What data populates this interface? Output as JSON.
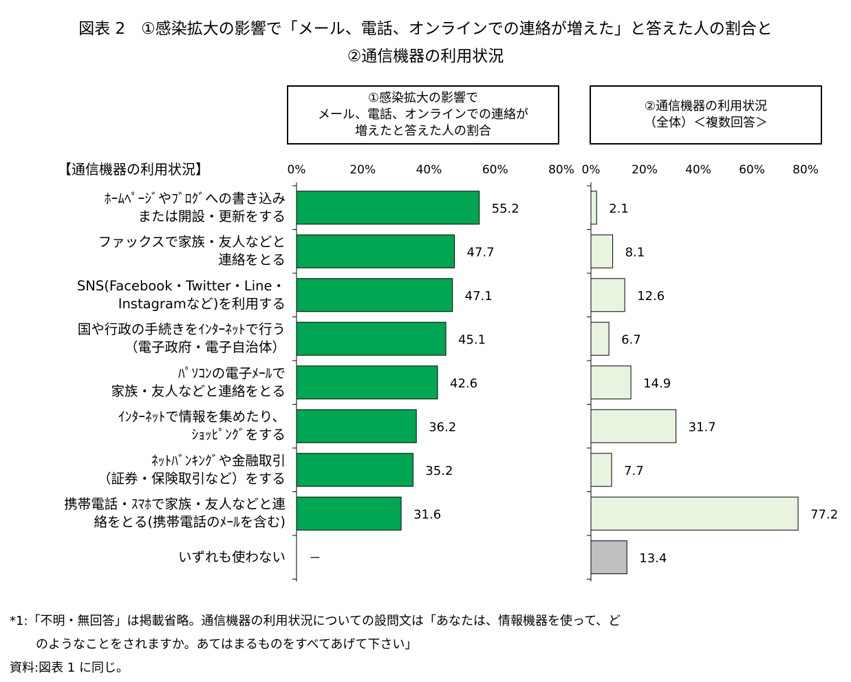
{
  "title": {
    "line1": "図表 2　①感染拡大の影響で「メール、電話、オンラインでの連絡が増えた」と答えた人の割合と",
    "line2": "②通信機器の利用状況"
  },
  "panel1_header": [
    "①感染拡大の影響で",
    "メール、電話、オンラインでの連絡が",
    "増えたと答えた人の割合"
  ],
  "panel2_header": [
    "②通信機器の利用状況",
    "（全体）＜複数回答＞"
  ],
  "section_label": "【通信機器の利用状況】",
  "notes": {
    "line1": "*1:「不明・無回答」は掲載省略。通信機器の利用状況についての設問文は「あなたは、情報機器を使って、ど",
    "line2": "のようなことをされますか。あてはまるものをすべてあげて下さい」",
    "line3": "資料:図表 1 に同じ。"
  },
  "chart_data": {
    "type": "bar",
    "orientation": "horizontal",
    "categories": [
      [
        "ﾎｰﾑﾍﾟｰｼﾞやﾌﾞﾛｸﾞへの書き込み",
        "または開設・更新をする"
      ],
      [
        "ファックスで家族・友人などと",
        "連絡をとる"
      ],
      [
        "SNS(Facebook・Twitter・Line・",
        "Instagramなど)を利用する"
      ],
      [
        "国や行政の手続きをｲﾝﾀｰﾈｯﾄで行う",
        "（電子政府・電子自治体）"
      ],
      [
        "ﾊﾟｿｺﾝの電子ﾒｰﾙで",
        "家族・友人などと連絡をとる"
      ],
      [
        "ｲﾝﾀｰﾈｯﾄで情報を集めたり、",
        "ｼｮｯﾋﾟﾝｸﾞをする"
      ],
      [
        "ﾈｯﾄﾊﾞﾝｷﾝｸﾞや金融取引",
        "（証券・保険取引など）をする"
      ],
      [
        "携帯電話・ｽﾏﾎで家族・友人などと連",
        "絡をとる(携帯電話のﾒｰﾙを含む)"
      ],
      [
        "いずれも使わない"
      ]
    ],
    "panels": [
      {
        "name": "①感染拡大の影響でメール、電話、オンラインでの連絡が増えたと答えた人の割合",
        "values": [
          55.2,
          47.7,
          47.1,
          45.1,
          42.6,
          36.2,
          35.2,
          31.6,
          null
        ],
        "labels": [
          "55.2",
          "47.7",
          "47.1",
          "45.1",
          "42.6",
          "36.2",
          "35.2",
          "31.6",
          "－"
        ],
        "xlim": [
          0,
          80
        ],
        "ticks": [
          "0%",
          "20%",
          "40%",
          "60%",
          "80%"
        ],
        "color": "#00a651"
      },
      {
        "name": "②通信機器の利用状況（全体）＜複数回答＞",
        "values": [
          2.1,
          8.1,
          12.6,
          6.7,
          14.9,
          31.7,
          7.7,
          77.2,
          13.4
        ],
        "labels": [
          "2.1",
          "8.1",
          "12.6",
          "6.7",
          "14.9",
          "31.7",
          "7.7",
          "77.2",
          "13.4"
        ],
        "xlim": [
          0,
          80
        ],
        "ticks": [
          "0%",
          "20%",
          "40%",
          "60%",
          "80%"
        ],
        "color": "#e8f3e0",
        "last_color": "#c0c0c0"
      }
    ]
  }
}
